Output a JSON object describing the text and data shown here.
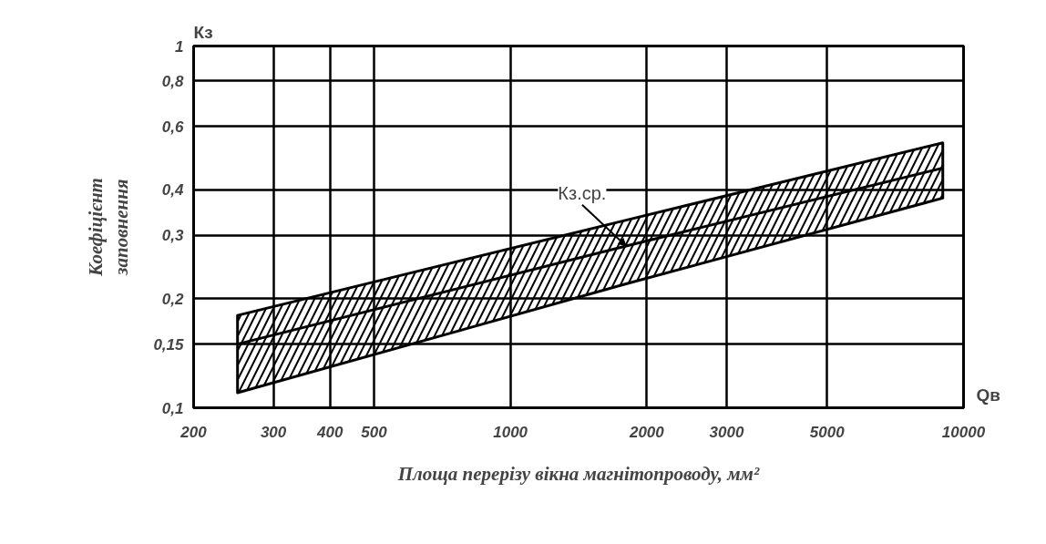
{
  "chart_data": {
    "type": "line",
    "xlabel": "Площа перерізу вікна магнітопроводу, мм²",
    "ylabel": "Коефіцієнт\nзаповнення",
    "annotations": [
      "Кз",
      "Qв",
      {
        "text": "Кз.ср.",
        "x": 1800,
        "y": 0.28
      }
    ],
    "log": "xy",
    "xlim": [
      200,
      10000
    ],
    "ylim": [
      0.1,
      1
    ],
    "xticks": [
      200,
      300,
      400,
      500,
      1000,
      2000,
      3000,
      5000,
      10000
    ],
    "yticks": [
      {
        "value": 0.1,
        "label": "0,1"
      },
      {
        "value": 0.15,
        "label": "0,15"
      },
      {
        "value": 0.2,
        "label": "0,2"
      },
      {
        "value": 0.3,
        "label": "0,3"
      },
      {
        "value": 0.4,
        "label": "0,4"
      },
      {
        "value": 0.6,
        "label": "0,6"
      },
      {
        "value": 0.8,
        "label": "0,8"
      },
      1
    ],
    "grid": true,
    "line_style": "solid",
    "marker": "none",
    "series": [
      {
        "color": "#000000",
        "x": [
          250,
          1800,
          9000
        ],
        "values": [
          0.15,
          0.28,
          0.46
        ],
        "lower": [
          0.11,
          0.22,
          0.38
        ],
        "upper": [
          0.18,
          0.33,
          0.54
        ]
      }
    ]
  }
}
